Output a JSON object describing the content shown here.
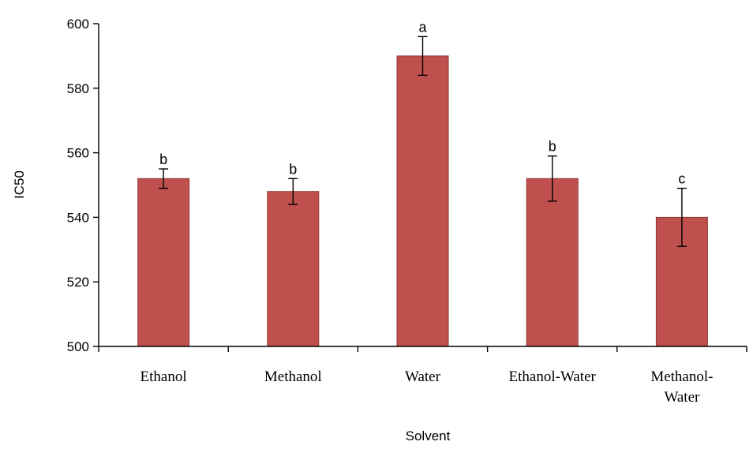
{
  "chart_data": {
    "type": "bar",
    "categories": [
      [
        "Ethanol"
      ],
      [
        "Methanol"
      ],
      [
        "Water"
      ],
      [
        "Ethanol-Water"
      ],
      [
        "Methanol-",
        "Water"
      ]
    ],
    "values": [
      552,
      548,
      590,
      552,
      540
    ],
    "errors": [
      3,
      4,
      6,
      7,
      9
    ],
    "significance": [
      "b",
      "b",
      "a",
      "b",
      "c"
    ],
    "title": "",
    "xlabel": "Solvent",
    "ylabel": "IC50",
    "ylim": [
      500,
      600
    ],
    "yticks": [
      "500",
      "520",
      "540",
      "560",
      "580",
      "600"
    ],
    "bar_color": "#c0504d",
    "grid": false,
    "legend": "none"
  }
}
